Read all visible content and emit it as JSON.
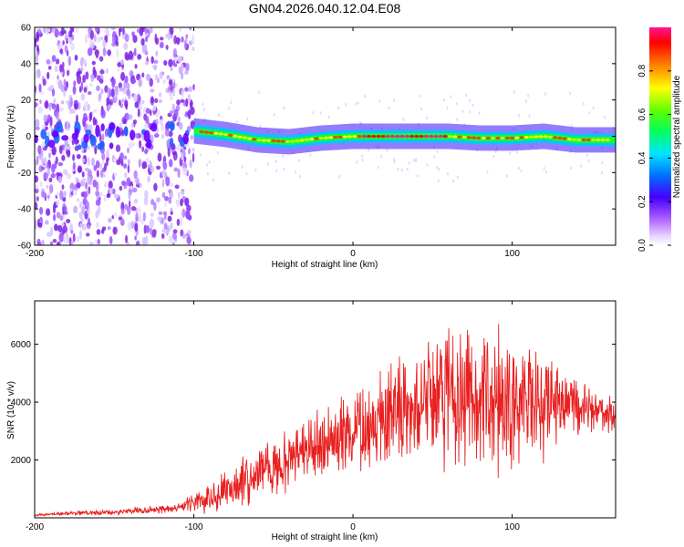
{
  "title": "GN04.2026.040.12.04.E08",
  "chart_data": [
    {
      "type": "heatmap",
      "xlabel": "Height of straight line (km)",
      "ylabel": "Frequency (Hz)",
      "xlim": [
        -200,
        165
      ],
      "ylim": [
        -60,
        60
      ],
      "xticks": [
        "-200",
        "-100",
        "0",
        "100"
      ],
      "yticks": [
        "-60",
        "-40",
        "-20",
        "0",
        "20",
        "40",
        "60"
      ],
      "colorbar": {
        "label": "Normalized spectral amplitude",
        "range": [
          0,
          1
        ],
        "ticks": [
          "0.0",
          "0.2",
          "0.4",
          "0.6",
          "0.8"
        ],
        "colors": [
          "#ffffff",
          "#dcc8ff",
          "#8a2be2",
          "#0000ff",
          "#00e5ff",
          "#00ff00",
          "#ffff00",
          "#ff0000",
          "#ff1493"
        ]
      },
      "description_values": {
        "noise_region_x": [
          -200,
          -100
        ],
        "signal_band_center_hz": [
          [
            -100,
            3
          ],
          [
            -80,
            1
          ],
          [
            -60,
            -2
          ],
          [
            -40,
            -3
          ],
          [
            -20,
            -1
          ],
          [
            0,
            0
          ],
          [
            20,
            0
          ],
          [
            40,
            0
          ],
          [
            60,
            0
          ],
          [
            80,
            -1
          ],
          [
            100,
            -1
          ],
          [
            120,
            0
          ],
          [
            140,
            -2
          ],
          [
            165,
            -2
          ]
        ]
      }
    },
    {
      "type": "line",
      "xlabel": "Height of straight line (km)",
      "ylabel": "SNR (10 * v/v)",
      "xlim": [
        -200,
        165
      ],
      "ylim": [
        0,
        7500
      ],
      "xticks": [
        "-200",
        "-100",
        "0",
        "100"
      ],
      "yticks": [
        "2000",
        "4000",
        "6000"
      ],
      "series": [
        {
          "color": "#e82020",
          "x": [
            -200,
            -180,
            -160,
            -140,
            -120,
            -110,
            -100,
            -90,
            -80,
            -70,
            -60,
            -50,
            -40,
            -30,
            -20,
            -10,
            0,
            10,
            20,
            30,
            40,
            50,
            60,
            70,
            80,
            90,
            100,
            110,
            120,
            130,
            140,
            150,
            165
          ],
          "y": [
            100,
            150,
            180,
            220,
            300,
            350,
            500,
            650,
            900,
            1200,
            1500,
            1800,
            2100,
            2300,
            2600,
            2800,
            3000,
            3200,
            3500,
            3700,
            3800,
            3900,
            4000,
            4000,
            3900,
            3950,
            4000,
            3950,
            3900,
            3900,
            3800,
            3700,
            3600
          ],
          "amp": [
            40,
            60,
            80,
            100,
            120,
            150,
            300,
            450,
            600,
            700,
            800,
            900,
            900,
            900,
            1000,
            1100,
            1200,
            1300,
            1400,
            1500,
            1600,
            1800,
            2000,
            2200,
            2200,
            2100,
            2000,
            1800,
            1500,
            1200,
            900,
            700,
            500
          ],
          "max": 7500
        }
      ]
    }
  ]
}
